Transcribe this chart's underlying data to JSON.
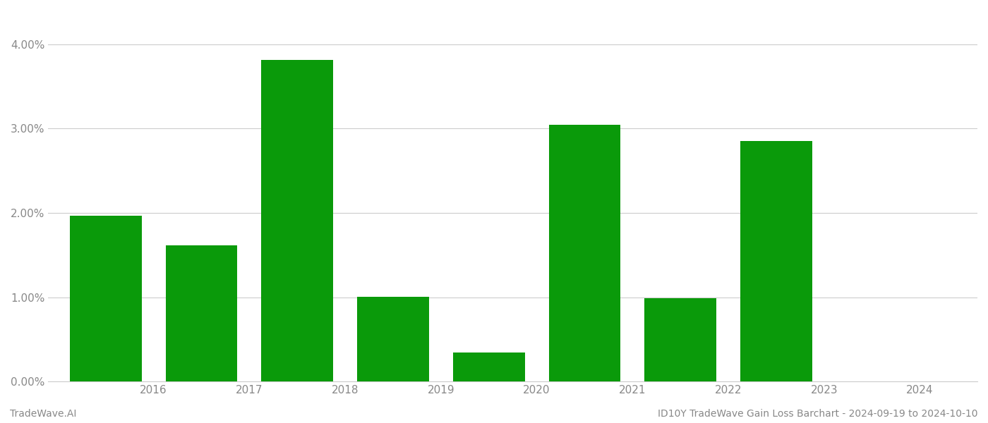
{
  "years": [
    "2016",
    "2017",
    "2018",
    "2019",
    "2020",
    "2021",
    "2022",
    "2023",
    "2024"
  ],
  "values": [
    0.01965,
    0.01615,
    0.03815,
    0.01005,
    0.00345,
    0.03045,
    0.00985,
    0.02855,
    0.0
  ],
  "bar_color": "#0a9a0a",
  "background_color": "#ffffff",
  "ylim": [
    0,
    0.044
  ],
  "yticks": [
    0.0,
    0.01,
    0.02,
    0.03,
    0.04
  ],
  "ytick_labels": [
    "0.00%",
    "1.00%",
    "2.00%",
    "3.00%",
    "4.00%"
  ],
  "grid_color": "#cccccc",
  "axis_label_color": "#888888",
  "bottom_left_text": "TradeWave.AI",
  "bottom_right_text": "ID10Y TradeWave Gain Loss Barchart - 2024-09-19 to 2024-10-10",
  "bottom_text_color": "#888888",
  "bar_width": 0.75
}
